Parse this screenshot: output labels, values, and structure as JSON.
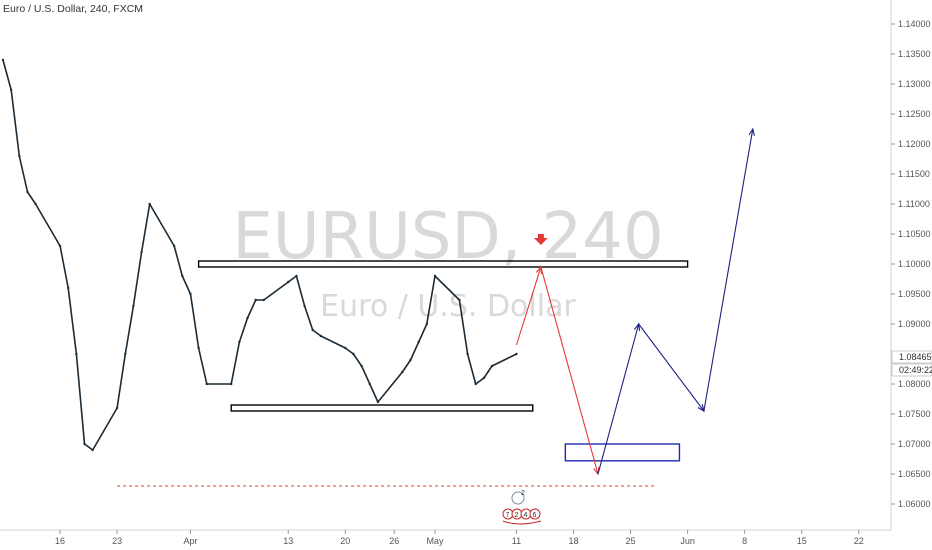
{
  "header": {
    "title": "Euro / U.S. Dollar, 240, FXCM"
  },
  "watermark": {
    "symbol": "EURUSD, 240",
    "description": "Euro / U.S. Dollar"
  },
  "price_scale": {
    "ticks": [
      "1.14000",
      "1.13500",
      "1.13000",
      "1.12500",
      "1.12000",
      "1.11500",
      "1.11000",
      "1.10500",
      "1.10000",
      "1.09500",
      "1.09000",
      "1.08500",
      "1.08000",
      "1.07500",
      "1.07000",
      "1.06500",
      "1.06000"
    ],
    "last_price": "1.08465",
    "countdown": "02:49:22"
  },
  "time_scale": {
    "ticks": [
      "16",
      "23",
      "Apr",
      "13",
      "20",
      "26",
      "May",
      "11",
      "18",
      "25",
      "Jun",
      "8",
      "15",
      "22"
    ]
  },
  "events": {
    "badge_count": "2",
    "flags": [
      "7",
      "2",
      "4",
      "6"
    ]
  },
  "colors": {
    "resistance_box": "#000000",
    "support_box": "#000000",
    "target_box": "#1f2bb5",
    "down_path": "#e53935",
    "up_path": "#1a237e",
    "dashed_line": "#e53935",
    "bear_arrow": "#e53935"
  },
  "chart_data": {
    "type": "line",
    "title": "Euro / U.S. Dollar, 240, FXCM",
    "xlabel": "",
    "ylabel": "",
    "ylim": [
      1.0575,
      1.145
    ],
    "price_path": {
      "x": [
        "2020-03-09",
        "2020-03-10",
        "2020-03-11",
        "2020-03-12",
        "2020-03-13",
        "2020-03-16",
        "2020-03-17",
        "2020-03-18",
        "2020-03-19",
        "2020-03-20",
        "2020-03-23",
        "2020-03-24",
        "2020-03-25",
        "2020-03-26",
        "2020-03-27",
        "2020-03-30",
        "2020-03-31",
        "2020-04-01",
        "2020-04-02",
        "2020-04-03",
        "2020-04-06",
        "2020-04-07",
        "2020-04-08",
        "2020-04-09",
        "2020-04-10",
        "2020-04-13",
        "2020-04-14",
        "2020-04-15",
        "2020-04-16",
        "2020-04-17",
        "2020-04-20",
        "2020-04-21",
        "2020-04-22",
        "2020-04-23",
        "2020-04-24",
        "2020-04-27",
        "2020-04-28",
        "2020-04-29",
        "2020-04-30",
        "2020-05-01",
        "2020-05-04",
        "2020-05-05",
        "2020-05-06",
        "2020-05-07",
        "2020-05-08",
        "2020-05-11"
      ],
      "y": [
        1.134,
        1.129,
        1.118,
        1.112,
        1.11,
        1.103,
        1.096,
        1.085,
        1.07,
        1.069,
        1.076,
        1.085,
        1.093,
        1.102,
        1.11,
        1.103,
        1.098,
        1.095,
        1.086,
        1.08,
        1.08,
        1.087,
        1.091,
        1.094,
        1.094,
        1.097,
        1.098,
        1.093,
        1.089,
        1.088,
        1.086,
        1.085,
        1.083,
        1.08,
        1.077,
        1.082,
        1.084,
        1.087,
        1.09,
        1.098,
        1.094,
        1.085,
        1.08,
        1.081,
        1.083,
        1.085
      ]
    },
    "projection_down": {
      "x": [
        "2020-05-11",
        "2020-05-14",
        "2020-05-21"
      ],
      "y": [
        1.0865,
        1.0995,
        1.065
      ]
    },
    "projection_up": {
      "x": [
        "2020-05-21",
        "2020-05-26",
        "2020-06-03",
        "2020-06-09"
      ],
      "y": [
        1.065,
        1.09,
        1.0755,
        1.1225
      ]
    },
    "zones": [
      {
        "name": "resistance",
        "x": [
          "2020-04-02",
          "2020-06-01"
        ],
        "y": [
          1.0995,
          1.1005
        ]
      },
      {
        "name": "support",
        "x": [
          "2020-04-06",
          "2020-05-13"
        ],
        "y": [
          1.0755,
          1.0765
        ]
      },
      {
        "name": "target",
        "x": [
          "2020-05-17",
          "2020-05-31"
        ],
        "y": [
          1.0672,
          1.07
        ]
      }
    ],
    "hlines": [
      {
        "y": 1.063,
        "x": [
          "2020-03-23",
          "2020-05-28"
        ],
        "style": "dashed"
      }
    ],
    "annotations": [
      {
        "type": "down-arrow",
        "x": "2020-05-14",
        "y": 1.1035
      }
    ],
    "grid": false,
    "legend": "none"
  }
}
